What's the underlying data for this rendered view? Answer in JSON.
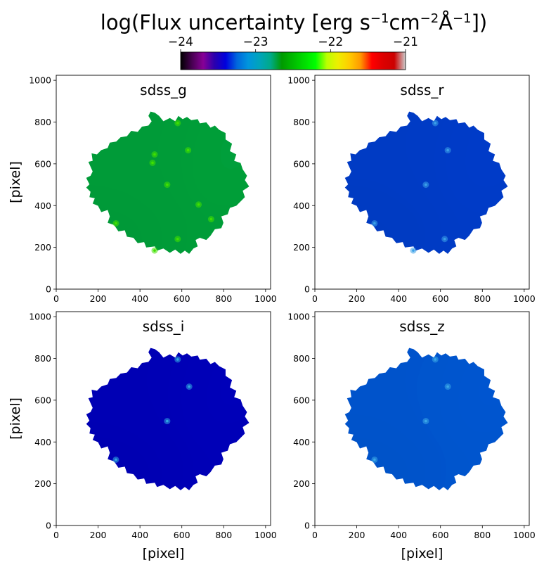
{
  "figure": {
    "title_main": "log(Flux uncertainty [erg s",
    "title_sup1": "−1",
    "title_mid": "cm",
    "title_sup2": "−2",
    "title_angstrom": "Å",
    "title_sup3": "−1",
    "title_end": "])"
  },
  "colorbar": {
    "colormap": "nipy_spectral",
    "range": [
      -24,
      -21
    ],
    "ticks": [
      -24,
      -23,
      -22,
      -21
    ],
    "tick_labels": [
      "−24",
      "−23",
      "−22",
      "−21"
    ]
  },
  "chart_data": [
    {
      "type": "heatmap",
      "title": "sdss_g",
      "xlabel": "",
      "ylabel": "[pixel]",
      "xlim": [
        0,
        1024
      ],
      "ylim": [
        0,
        1024
      ],
      "xticks": [
        0,
        200,
        400,
        600,
        800,
        1000
      ],
      "yticks": [
        0,
        200,
        400,
        600,
        800,
        1000
      ],
      "background_value": -22.6,
      "background_color": "#00a53c",
      "highlight_color": "#40e000",
      "bright_sources": [
        {
          "x": 580,
          "y": 795,
          "value": -22.3
        },
        {
          "x": 630,
          "y": 665,
          "value": -22.4
        },
        {
          "x": 470,
          "y": 645,
          "value": -22.4
        },
        {
          "x": 460,
          "y": 605,
          "value": -22.4
        },
        {
          "x": 530,
          "y": 500,
          "value": -22.4
        },
        {
          "x": 680,
          "y": 405,
          "value": -22.45
        },
        {
          "x": 740,
          "y": 335,
          "value": -22.45
        },
        {
          "x": 285,
          "y": 315,
          "value": -22.4
        },
        {
          "x": 580,
          "y": 240,
          "value": -22.4
        },
        {
          "x": 470,
          "y": 185,
          "value": -22.4
        }
      ]
    },
    {
      "type": "heatmap",
      "title": "sdss_r",
      "xlabel": "",
      "ylabel": "",
      "xlim": [
        0,
        1024
      ],
      "ylim": [
        0,
        1024
      ],
      "xticks": [
        0,
        200,
        400,
        600,
        800,
        1000
      ],
      "yticks": [
        0,
        200,
        400,
        600,
        800,
        1000
      ],
      "background_value": -23.2,
      "background_color": "#0a3fd0",
      "highlight_color": "#3aa0e8",
      "bright_sources": [
        {
          "x": 575,
          "y": 795,
          "value": -23.0
        },
        {
          "x": 635,
          "y": 665,
          "value": -23.05
        },
        {
          "x": 530,
          "y": 500,
          "value": -23.0
        },
        {
          "x": 285,
          "y": 315,
          "value": -23.05
        },
        {
          "x": 620,
          "y": 240,
          "value": -23.05
        },
        {
          "x": 470,
          "y": 185,
          "value": -23.05
        }
      ]
    },
    {
      "type": "heatmap",
      "title": "sdss_i",
      "xlabel": "[pixel]",
      "ylabel": "[pixel]",
      "xlim": [
        0,
        1024
      ],
      "ylim": [
        0,
        1024
      ],
      "xticks": [
        0,
        200,
        400,
        600,
        800,
        1000
      ],
      "yticks": [
        0,
        200,
        400,
        600,
        800,
        1000
      ],
      "background_value": -23.4,
      "background_color": "#0000c0",
      "highlight_color": "#30a8e0",
      "bright_sources": [
        {
          "x": 580,
          "y": 795,
          "value": -23.1
        },
        {
          "x": 635,
          "y": 665,
          "value": -23.1
        },
        {
          "x": 530,
          "y": 500,
          "value": -23.05
        },
        {
          "x": 285,
          "y": 315,
          "value": -23.1
        }
      ]
    },
    {
      "type": "heatmap",
      "title": "sdss_z",
      "xlabel": "[pixel]",
      "ylabel": "",
      "xlim": [
        0,
        1024
      ],
      "ylim": [
        0,
        1024
      ],
      "xticks": [
        0,
        200,
        400,
        600,
        800,
        1000
      ],
      "yticks": [
        0,
        200,
        400,
        600,
        800,
        1000
      ],
      "background_value": -23.0,
      "background_color": "#0a5ad8",
      "highlight_color": "#3aa8e8",
      "bright_sources": [
        {
          "x": 575,
          "y": 795,
          "value": -22.9
        },
        {
          "x": 635,
          "y": 665,
          "value": -22.9
        },
        {
          "x": 530,
          "y": 500,
          "value": -22.9
        },
        {
          "x": 285,
          "y": 315,
          "value": -22.9
        }
      ]
    }
  ]
}
